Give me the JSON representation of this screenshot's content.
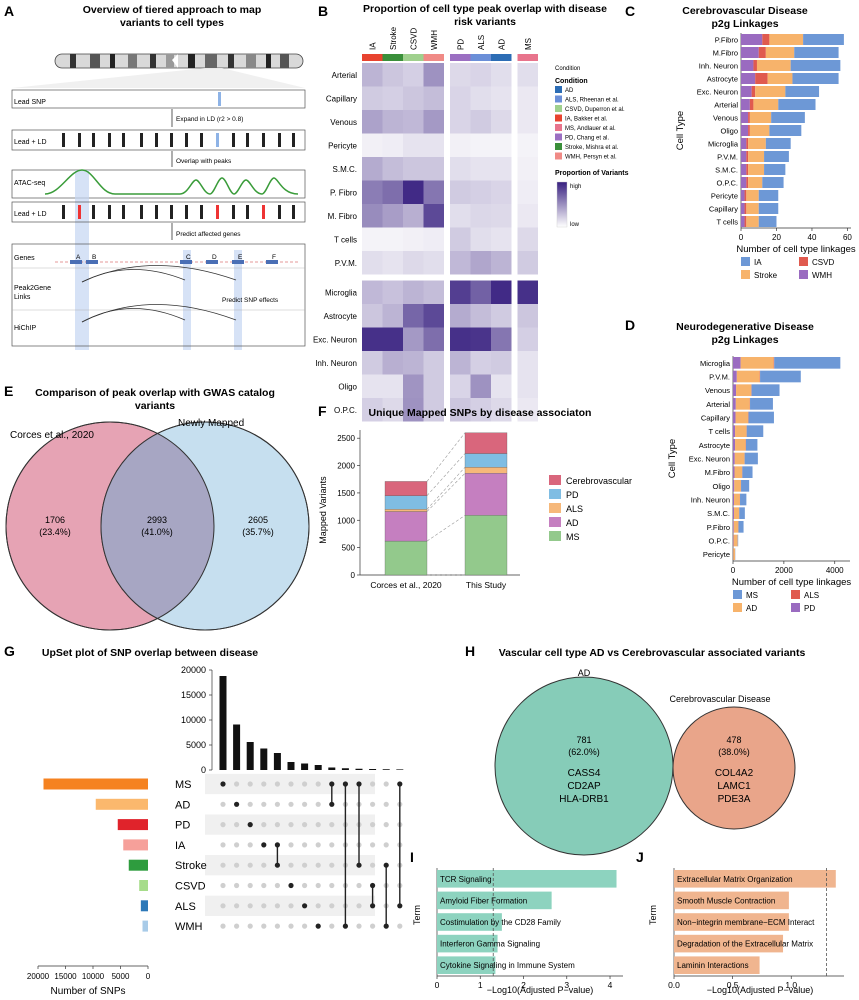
{
  "panels": {
    "A": {
      "letter": "A",
      "title_line1": "Overview of tiered approach to map",
      "title_line2": "variants to cell types",
      "rows": {
        "lead_snp": "Lead SNP",
        "lead_ld_1": "Lead + LD",
        "atac": "ATAC-seq",
        "lead_ld_2": "Lead + LD",
        "genes": "Genes",
        "p2g_1": "Peak2Gene",
        "p2g_2": "Links",
        "hichip": "HiChIP"
      },
      "steps": {
        "expand": "Expand in LD (r2 > 0.8)",
        "overlap": "Overlap with peaks",
        "predict_genes": "Predict affected genes",
        "predict_snp": "Predict SNP effects"
      },
      "gene_letters": [
        "A",
        "B",
        "C",
        "D",
        "E",
        "F"
      ]
    },
    "B": {
      "letter": "B",
      "title_line1": "Proportion of cell type peak overlap with disease",
      "title_line2": "risk variants",
      "columns": [
        "IA",
        "Stroke",
        "CSVD",
        "WMH",
        "PD",
        "ALS",
        "AD",
        "MS"
      ],
      "column_colors": [
        "#e8432f",
        "#3a8f3a",
        "#9fd08d",
        "#f08a86",
        "#9b6fc2",
        "#6b8fd8",
        "#2c6db5",
        "#e8748c"
      ],
      "condition_strip_label": "Condition",
      "rows_vascular": [
        "Arterial",
        "Capillary",
        "Venous",
        "Pericyte",
        "S.M.C.",
        "P. Fibro",
        "M. Fibro",
        "T cells",
        "P.V.M."
      ],
      "rows_neural": [
        "Microglia",
        "Astrocyte",
        "Exc. Neuron",
        "Inh. Neuron",
        "Oligo",
        "O.P.C."
      ],
      "values_vascular": [
        [
          0.3,
          0.22,
          0.18,
          0.45,
          0.14,
          0.16,
          0.12,
          0.12
        ],
        [
          0.2,
          0.18,
          0.22,
          0.26,
          0.16,
          0.12,
          0.1,
          0.08
        ],
        [
          0.38,
          0.3,
          0.28,
          0.42,
          0.16,
          0.2,
          0.14,
          0.08
        ],
        [
          0.05,
          0.06,
          0.1,
          0.1,
          0.05,
          0.04,
          0.04,
          0.04
        ],
        [
          0.34,
          0.26,
          0.22,
          0.22,
          0.12,
          0.1,
          0.1,
          0.05
        ],
        [
          0.55,
          0.62,
          0.95,
          0.58,
          0.2,
          0.18,
          0.16,
          0.06
        ],
        [
          0.48,
          0.4,
          0.32,
          0.8,
          0.12,
          0.15,
          0.14,
          0.08
        ],
        [
          0.04,
          0.04,
          0.05,
          0.06,
          0.2,
          0.12,
          0.1,
          0.14
        ],
        [
          0.12,
          0.1,
          0.14,
          0.12,
          0.28,
          0.36,
          0.3,
          0.2
        ]
      ],
      "values_neural": [
        [
          0.28,
          0.24,
          0.3,
          0.26,
          0.85,
          0.68,
          0.95,
          0.92
        ],
        [
          0.22,
          0.3,
          0.66,
          0.8,
          0.34,
          0.26,
          0.2,
          0.22
        ],
        [
          0.92,
          0.92,
          0.42,
          0.62,
          0.92,
          0.9,
          0.58,
          0.18
        ],
        [
          0.2,
          0.32,
          0.3,
          0.2,
          0.3,
          0.18,
          0.2,
          0.1
        ],
        [
          0.1,
          0.1,
          0.44,
          0.2,
          0.16,
          0.45,
          0.1,
          0.1
        ],
        [
          0.18,
          0.14,
          0.45,
          0.2,
          0.22,
          0.18,
          0.14,
          0.08
        ]
      ],
      "legend_condition_title": "Condition",
      "legend_conditions": [
        {
          "label": "AD",
          "color": "#2c6db5"
        },
        {
          "label": "ALS, Rheenan et al.",
          "color": "#6b8fd8"
        },
        {
          "label": "CSVD, Duperron et al.",
          "color": "#9fd08d"
        },
        {
          "label": "IA, Bakker et al.",
          "color": "#e8432f"
        },
        {
          "label": "MS, Andlauer et al.",
          "color": "#e8748c"
        },
        {
          "label": "PD, Chang et al.",
          "color": "#9b6fc2"
        },
        {
          "label": "Stroke, Mishra et al.",
          "color": "#3a8f3a"
        },
        {
          "label": "WMH, Persyn et al.",
          "color": "#f08a86"
        }
      ],
      "legend_scale_title": "Proportion of Variants",
      "legend_high": "high",
      "legend_low": "low"
    },
    "C": {
      "letter": "C",
      "title_line1": "Cerebrovascular Disease",
      "title_line2": "p2g Linkages",
      "ylabel": "Cell Type",
      "xlabel": "Number of cell type linkages",
      "xticks": [
        0,
        20,
        40,
        60
      ]
    },
    "D": {
      "letter": "D",
      "title_line1": "Neurodegenerative Disease",
      "title_line2": "p2g Linkages",
      "ylabel": "Cell Type",
      "xlabel": "Number of cell type linkages",
      "xticks": [
        0,
        2000,
        4000
      ]
    },
    "E": {
      "letter": "E",
      "title_line1": "Comparison of peak overlap with GWAS catalog",
      "title_line2": "variants",
      "left_label": "Corces et al., 2020",
      "right_label": "Newly Mapped",
      "left_count": "1706",
      "left_pct": "(23.4%)",
      "mid_count": "2993",
      "mid_pct": "(41.0%)",
      "right_count": "2605",
      "right_pct": "(35.7%)"
    },
    "F": {
      "letter": "F",
      "title": "Unique Mapped SNPs by disease associaton",
      "ylabel": "Mapped Variants"
    },
    "G": {
      "letter": "G",
      "title": "UpSet plot of SNP overlap between disease",
      "xlabel": "Number of SNPs",
      "set_ticks": [
        "20000",
        "15000",
        "10000",
        "5000",
        "0"
      ],
      "bar_ticks": [
        "20000",
        "15000",
        "10000",
        "5000",
        "0"
      ]
    },
    "H": {
      "letter": "H",
      "title": "Vascular cell type AD vs Cerebrovascular associated variants",
      "left_label": "AD",
      "right_label": "Cerebrovascular Disease",
      "left_count": "781",
      "left_pct": "(62.0%)",
      "left_genes": [
        "CASS4",
        "CD2AP",
        "HLA-DRB1"
      ],
      "right_count": "478",
      "right_pct": "(38.0%)",
      "right_genes": [
        "COL4A2",
        "LAMC1",
        "PDE3A"
      ]
    },
    "I": {
      "letter": "I",
      "ylabel": "Term",
      "xlabel": "−Log10(Adjusted P−value)"
    },
    "J": {
      "letter": "J",
      "ylabel": "Term",
      "xlabel": "−Log10(Adjusted P−value)"
    }
  },
  "chart_data": [
    {
      "id": "C",
      "type": "bar",
      "orientation": "horizontal",
      "stacked": true,
      "title": "Cerebrovascular Disease p2g Linkages",
      "xlabel": "Number of cell type linkages",
      "ylabel": "Cell Type",
      "xlim": [
        0,
        62
      ],
      "categories": [
        "P.Fibro",
        "M.Fibro",
        "Inh. Neuron",
        "Astrocyte",
        "Exc. Neuron",
        "Arterial",
        "Venous",
        "Oligo",
        "Microglia",
        "P.V.M.",
        "S.M.C.",
        "O.P.C.",
        "Pericyte",
        "Capillary",
        "T cells"
      ],
      "series": [
        {
          "name": "WMH",
          "color": "#9a6bc0",
          "values": [
            12,
            10,
            7,
            8,
            6,
            5,
            4,
            4,
            3,
            3,
            3,
            3,
            2,
            2,
            2
          ]
        },
        {
          "name": "CSVD",
          "color": "#e05a4f",
          "values": [
            4,
            4,
            2,
            7,
            2,
            2,
            1,
            1,
            1,
            1,
            1,
            1,
            1,
            1,
            1
          ]
        },
        {
          "name": "Stroke",
          "color": "#f7b36b",
          "values": [
            19,
            16,
            19,
            14,
            17,
            14,
            12,
            11,
            10,
            9,
            9,
            8,
            7,
            7,
            7
          ]
        },
        {
          "name": "IA",
          "color": "#6d98d6",
          "values": [
            23,
            25,
            28,
            26,
            19,
            21,
            19,
            18,
            14,
            14,
            12,
            12,
            11,
            11,
            10
          ]
        }
      ],
      "legend": [
        "IA",
        "CSVD",
        "Stroke",
        "WMH"
      ]
    },
    {
      "id": "D",
      "type": "bar",
      "orientation": "horizontal",
      "stacked": true,
      "title": "Neurodegenerative Disease p2g Linkages",
      "xlabel": "Number of cell type linkages",
      "ylabel": "Cell Type",
      "xlim": [
        0,
        4600
      ],
      "categories": [
        "Microglia",
        "P.V.M.",
        "Venous",
        "Arterial",
        "Capillary",
        "T cells",
        "Astrocyte",
        "Exc. Neuron",
        "M.Fibro",
        "Oligo",
        "Inh. Neuron",
        "S.M.C.",
        "P.Fibro",
        "O.P.C.",
        "Pericyte"
      ],
      "series": [
        {
          "name": "PD",
          "color": "#9a6bc0",
          "values": [
            300,
            150,
            120,
            110,
            100,
            80,
            80,
            70,
            60,
            50,
            40,
            40,
            30,
            20,
            10
          ]
        },
        {
          "name": "AD",
          "color": "#f7b36b",
          "values": [
            1300,
            900,
            600,
            550,
            500,
            450,
            420,
            380,
            300,
            260,
            230,
            200,
            180,
            160,
            70
          ]
        },
        {
          "name": "ALS",
          "color": "#e05a4f",
          "values": [
            20,
            15,
            10,
            10,
            10,
            10,
            10,
            8,
            8,
            6,
            6,
            6,
            5,
            4,
            2
          ]
        },
        {
          "name": "MS",
          "color": "#6d98d6",
          "values": [
            2600,
            1600,
            1100,
            900,
            1000,
            650,
            450,
            520,
            400,
            320,
            250,
            220,
            200,
            20,
            8
          ]
        }
      ],
      "legend": [
        "MS",
        "ALS",
        "AD",
        "PD"
      ]
    },
    {
      "id": "F",
      "type": "bar",
      "stacked": true,
      "title": "Unique Mapped SNPs by disease associaton",
      "ylabel": "Mapped Variants",
      "ylim": [
        0,
        2650
      ],
      "yticks": [
        0,
        500,
        1000,
        1500,
        2000,
        2500
      ],
      "categories": [
        "Corces et al., 2020",
        "This Study"
      ],
      "series": [
        {
          "name": "MS",
          "color": "#93c98c",
          "values": [
            620,
            1090
          ]
        },
        {
          "name": "AD",
          "color": "#c57fc0",
          "values": [
            540,
            770
          ]
        },
        {
          "name": "ALS",
          "color": "#f6b87a",
          "values": [
            40,
            110
          ]
        },
        {
          "name": "PD",
          "color": "#7fbde3",
          "values": [
            250,
            250
          ]
        },
        {
          "name": "Cerebrovascular",
          "color": "#d9667c",
          "values": [
            260,
            380
          ]
        }
      ],
      "legend": [
        "Cerebrovascular",
        "PD",
        "ALS",
        "AD",
        "MS"
      ]
    },
    {
      "id": "G",
      "type": "bar",
      "title": "UpSet plot of SNP overlap between disease",
      "sets": [
        "MS",
        "AD",
        "PD",
        "IA",
        "Stroke",
        "CSVD",
        "ALS",
        "WMH"
      ],
      "set_colors": [
        "#f58220",
        "#fbb86d",
        "#e0232b",
        "#f6a09a",
        "#2e9c3e",
        "#a6dc8a",
        "#2c78b8",
        "#a8cbe8"
      ],
      "set_sizes": [
        19000,
        9500,
        5500,
        4500,
        3500,
        1600,
        1300,
        1000
      ],
      "set_xlim": [
        0,
        20000
      ],
      "intersection_sizes": [
        18800,
        9100,
        5600,
        4300,
        3400,
        1600,
        1300,
        1000,
        500,
        350,
        250,
        200,
        150,
        120
      ],
      "intersection_ylim": [
        0,
        20000
      ],
      "intersection_yticks": [
        0,
        5000,
        10000,
        15000,
        20000
      ],
      "xlabel": "Number of SNPs"
    },
    {
      "id": "I",
      "type": "bar",
      "orientation": "horizontal",
      "ylabel": "Term",
      "xlabel": "−Log10(Adjusted P−value)",
      "xlim": [
        0,
        4.3
      ],
      "xticks": [
        0,
        1,
        2,
        3,
        4
      ],
      "threshold": 1.3,
      "categories": [
        "TCR Signaling",
        "Amyloid Fiber Formation",
        "Costimulation by the CD28 Family",
        "Interferon Gamma Signaling",
        "Cytokine Signaling in Immune System"
      ],
      "values": [
        4.15,
        2.65,
        1.5,
        1.4,
        1.35
      ]
    },
    {
      "id": "J",
      "type": "bar",
      "orientation": "horizontal",
      "ylabel": "Term",
      "xlabel": "−Log10(Adjusted P−value)",
      "xlim": [
        0,
        1.45
      ],
      "xticks": [
        0.0,
        0.5,
        1.0
      ],
      "threshold": 1.3,
      "categories": [
        "Extracellular Matrix Organization",
        "Smooth Muscle Contraction",
        "Non−integrin membrane−ECM Interact",
        "Degradation of the Extracellular Matrix",
        "Laminin Interactions"
      ],
      "values": [
        1.38,
        0.98,
        0.98,
        0.93,
        0.73
      ]
    }
  ]
}
